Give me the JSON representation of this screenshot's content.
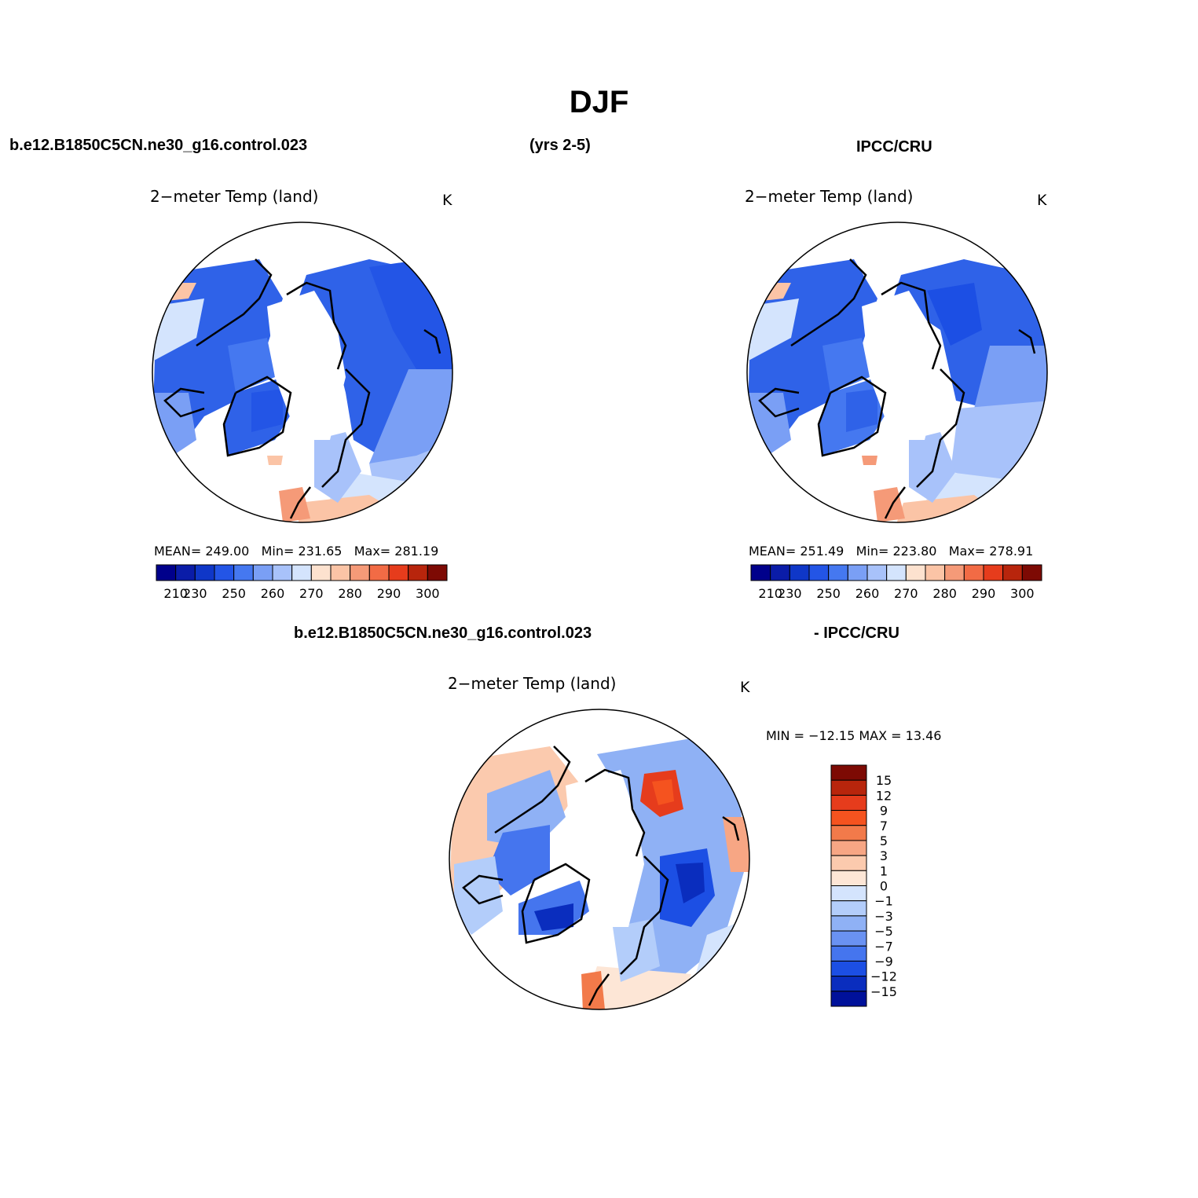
{
  "title": "DJF",
  "header": {
    "case_name": "b.e12.B1850C5CN.ne30_g16.control.023",
    "years": "(yrs 2-5)",
    "obs_name": "IPCC/CRU"
  },
  "panels": [
    {
      "id": "model",
      "title": "2−meter Temp (land)",
      "units": "K",
      "stats": {
        "mean_label": "MEAN=",
        "mean": "249.00",
        "min_label": "Min=",
        "min": "231.65",
        "max_label": "Max=",
        "max": "281.19"
      }
    },
    {
      "id": "obs",
      "title": "2−meter Temp (land)",
      "units": "K",
      "stats": {
        "mean_label": "MEAN=",
        "mean": "251.49",
        "min_label": "Min=",
        "min": "223.80",
        "max_label": "Max=",
        "max": "278.91"
      }
    }
  ],
  "colorbar_abs": {
    "colors": [
      "#00008b",
      "#0a1ca8",
      "#0f37c8",
      "#2355e6",
      "#4578f0",
      "#7a9ff5",
      "#a8c2fa",
      "#d4e4fd",
      "#fde2cf",
      "#fbc4a6",
      "#f59a78",
      "#f26b45",
      "#e63c1c",
      "#b8250c",
      "#7d0a04"
    ],
    "tick_labels": [
      "210",
      "230",
      "250",
      "260",
      "270",
      "280",
      "290",
      "300"
    ]
  },
  "diff": {
    "left_label": "b.e12.B1850C5CN.ne30_g16.control.023",
    "right_label": "- IPCC/CRU",
    "title": "2−meter Temp (land)",
    "units": "K",
    "minmax_text": "MIN = −12.15 MAX =   13.46",
    "min": -12.15,
    "max": 13.46,
    "colorbar": {
      "colors": [
        "#7d0a04",
        "#b8250c",
        "#e63c1c",
        "#f5531f",
        "#f27a4a",
        "#f7a684",
        "#fbcaae",
        "#fde6d6",
        "#d4e4fd",
        "#b3cdfa",
        "#8fb1f5",
        "#6a92f2",
        "#4575ee",
        "#1c4fe4",
        "#0a2dbe",
        "#00119a"
      ],
      "tick_labels": [
        "15",
        "12",
        "9",
        "7",
        "5",
        "3",
        "1",
        "0",
        "−1",
        "−3",
        "−5",
        "−7",
        "−9",
        "−12",
        "−15"
      ]
    }
  }
}
